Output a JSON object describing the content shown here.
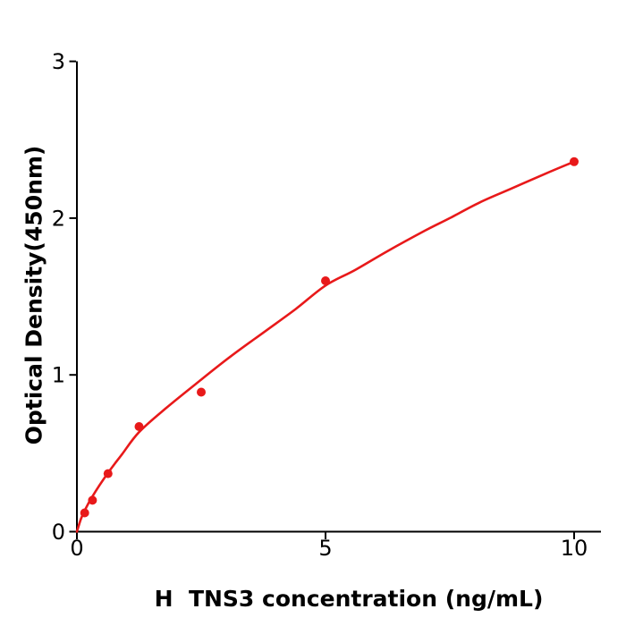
{
  "figure": {
    "background": "#ffffff",
    "accent_red": "#e8191a",
    "axis_color": "#000000",
    "text_color": "#000000"
  },
  "chart_data": {
    "type": "scatter",
    "title": "",
    "xlabel": "H  TNS3 concentration (ng/mL)",
    "ylabel": "Optical Density(450nm)",
    "xlim": [
      0,
      10.5
    ],
    "ylim": [
      0,
      3
    ],
    "grid": false,
    "legend": "none",
    "xticks": {
      "values": [
        0,
        5,
        10
      ],
      "labels": [
        "0",
        "5",
        "10"
      ]
    },
    "yticks": {
      "values": [
        0,
        1,
        2,
        3
      ],
      "labels": [
        "0",
        "1",
        "2",
        "3"
      ]
    },
    "series": [
      {
        "name": "standard-points",
        "type": "scatter",
        "color": "#e8191a",
        "marker_radius": 5,
        "x": [
          0.156,
          0.313,
          0.625,
          1.25,
          2.5,
          5,
          10
        ],
        "y": [
          0.12,
          0.2,
          0.37,
          0.67,
          0.89,
          1.6,
          2.36
        ]
      },
      {
        "name": "fit-curve",
        "type": "line",
        "color": "#e8191a",
        "stroke_width": 2.6,
        "x": [
          0,
          0.08,
          0.156,
          0.313,
          0.625,
          0.9,
          1.25,
          1.8,
          2.5,
          3.1,
          3.75,
          4.4,
          5,
          5.6,
          6.25,
          7,
          7.5,
          8.1,
          8.75,
          9.4,
          10
        ],
        "y": [
          0,
          0.08,
          0.135,
          0.225,
          0.375,
          0.49,
          0.635,
          0.79,
          0.97,
          1.12,
          1.27,
          1.42,
          1.57,
          1.67,
          1.79,
          1.92,
          2.0,
          2.1,
          2.19,
          2.28,
          2.36
        ]
      }
    ]
  }
}
